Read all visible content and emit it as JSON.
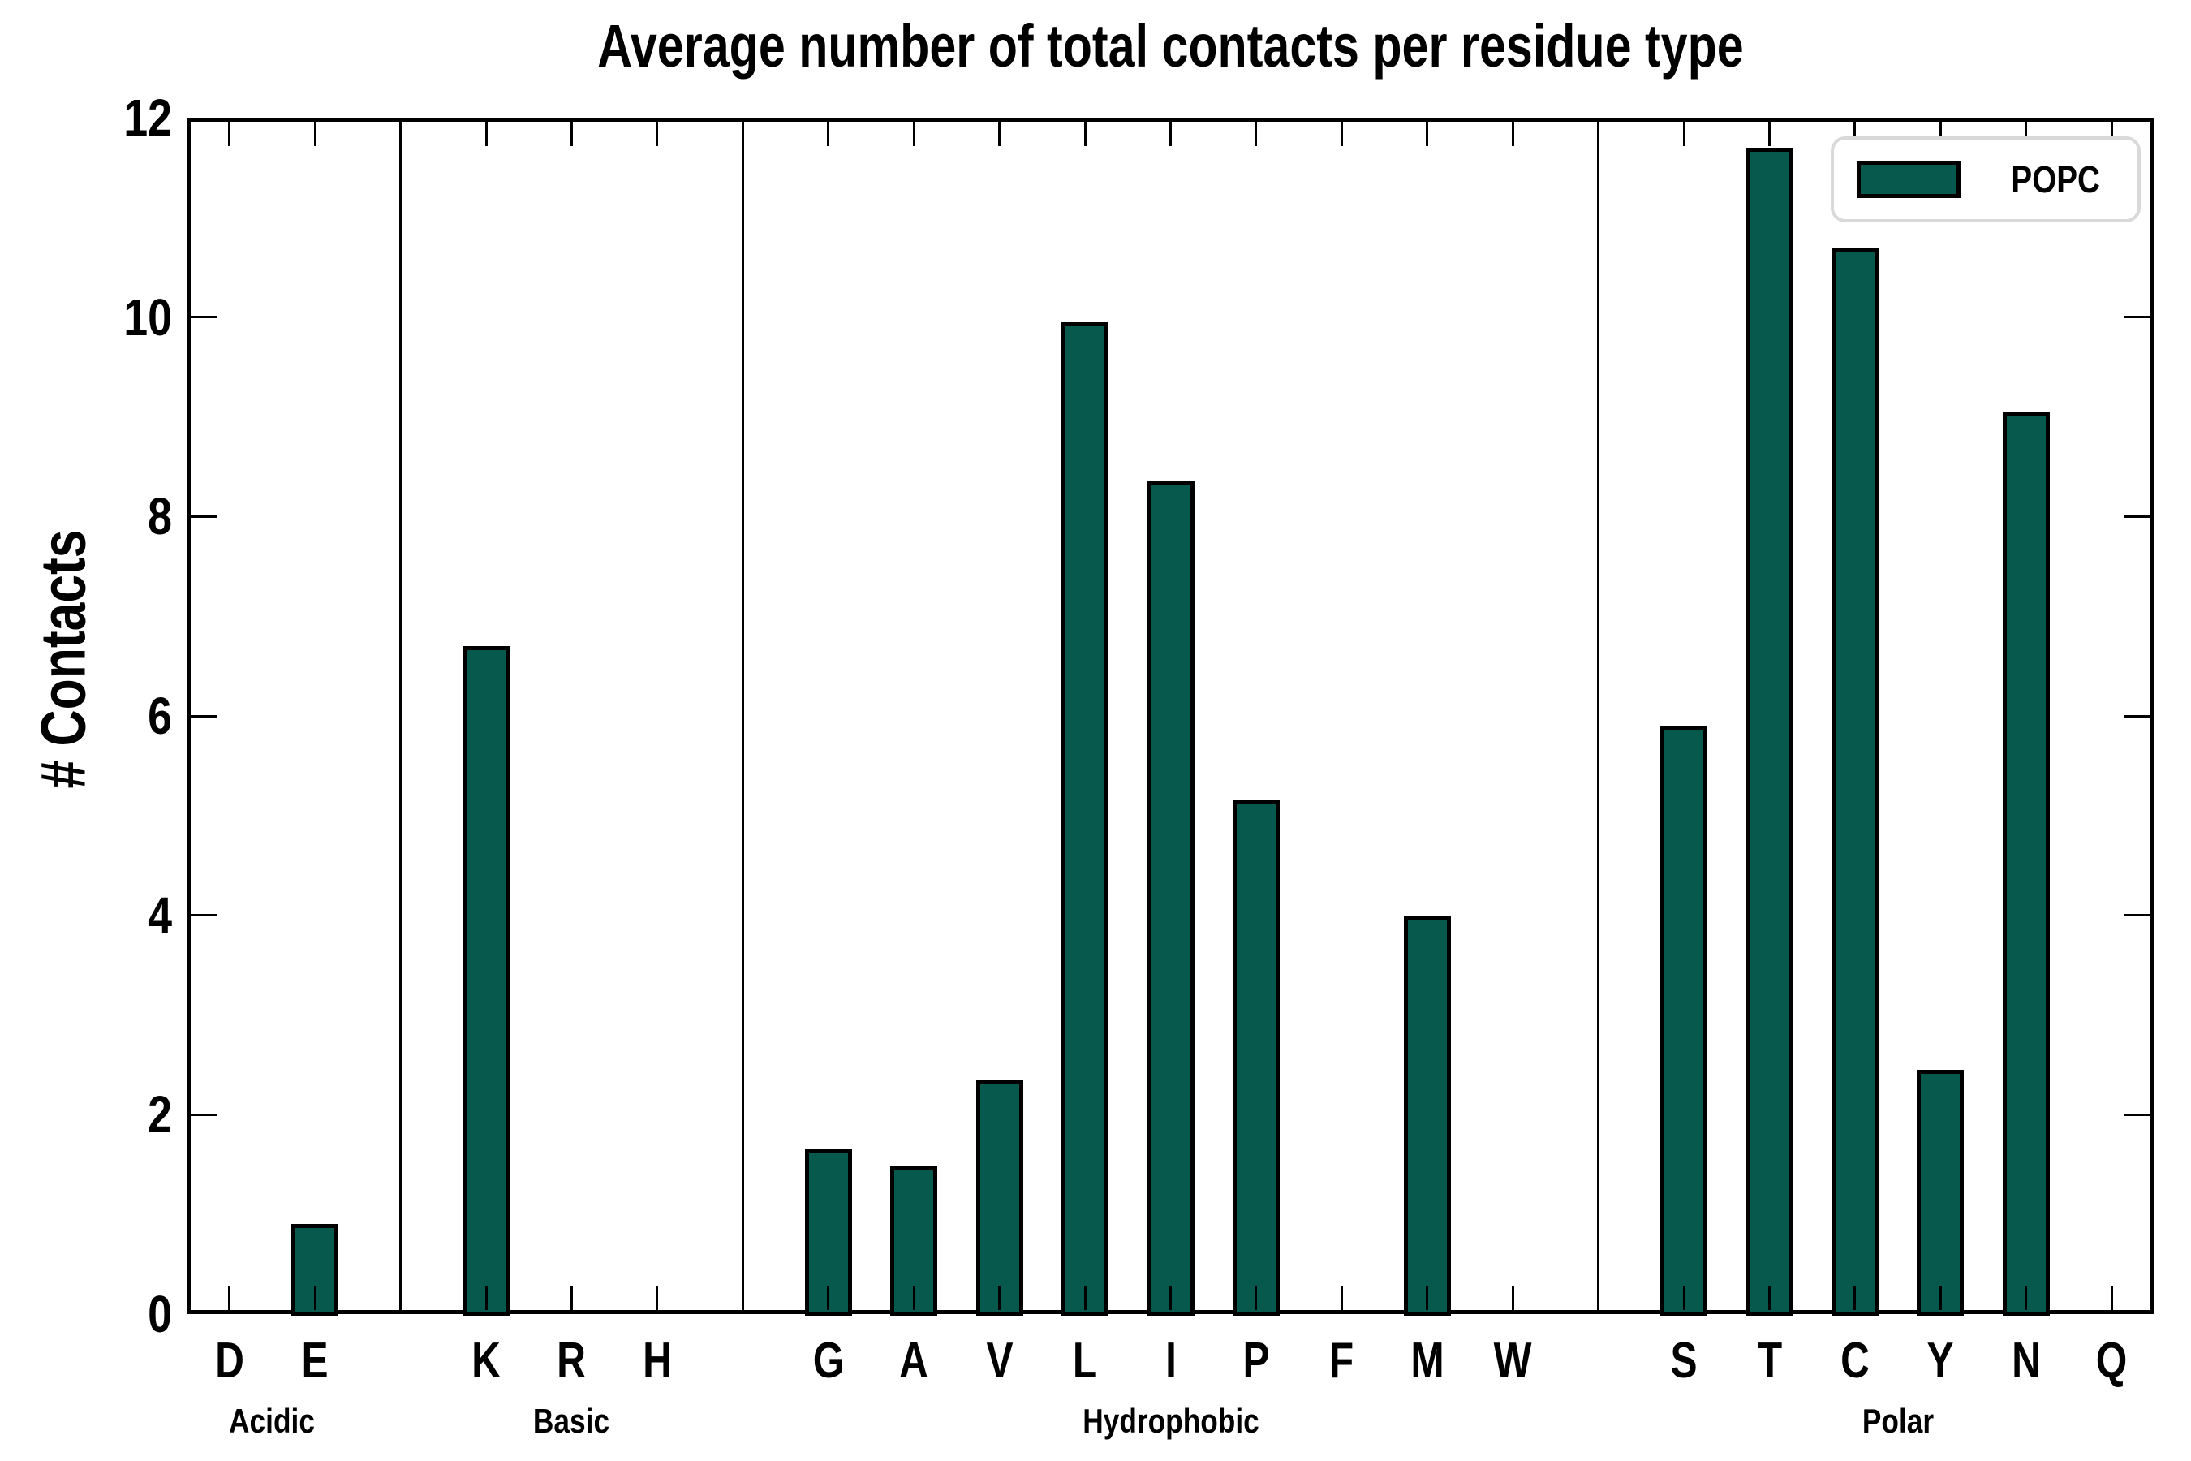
{
  "chart_data": {
    "type": "bar",
    "title": "Average number of total contacts per residue type",
    "xlabel": "",
    "ylabel": "# Contacts",
    "ylim": [
      0,
      12
    ],
    "yticks": [
      0,
      2,
      4,
      6,
      8,
      10,
      12
    ],
    "grid": false,
    "legend": {
      "position": "upper right",
      "entries": [
        {
          "label": "POPC",
          "color": "#07594E"
        }
      ]
    },
    "bar_color": "#07594E",
    "bar_edge_color": "#000000",
    "separators_between_groups": true,
    "groups": [
      {
        "label": "Acidic",
        "categories": [
          "D",
          "E"
        ],
        "values": [
          0.02,
          0.9
        ]
      },
      {
        "label": "Basic",
        "categories": [
          "K",
          "R",
          "H"
        ],
        "values": [
          6.7,
          0.02,
          0.02
        ]
      },
      {
        "label": "Hydrophobic",
        "categories": [
          "G",
          "A",
          "V",
          "L",
          "I",
          "P",
          "F",
          "M",
          "W"
        ],
        "values": [
          1.65,
          1.48,
          2.35,
          9.95,
          8.35,
          5.15,
          0.02,
          4.0,
          0.02
        ]
      },
      {
        "label": "Polar",
        "categories": [
          "S",
          "T",
          "C",
          "Y",
          "N",
          "Q"
        ],
        "values": [
          5.9,
          11.7,
          10.7,
          2.45,
          9.05,
          0.02
        ]
      }
    ]
  }
}
